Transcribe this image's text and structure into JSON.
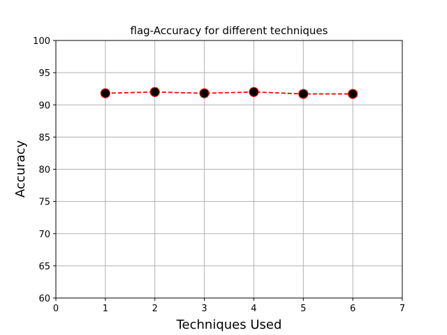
{
  "chart_data": {
    "type": "line",
    "title": "flag-Accuracy for different techniques",
    "xlabel": "Techniques Used",
    "ylabel": "Accuracy",
    "x": [
      1,
      2,
      3,
      4,
      5,
      6
    ],
    "series": [
      {
        "values": [
          91.8,
          92.0,
          91.8,
          92.0,
          91.7,
          91.7
        ]
      }
    ],
    "xlim": [
      0,
      7
    ],
    "ylim": [
      60,
      100
    ],
    "xticks": [
      0,
      1,
      2,
      3,
      4,
      5,
      6,
      7
    ],
    "yticks": [
      60,
      65,
      70,
      75,
      80,
      85,
      90,
      95,
      100
    ],
    "grid": true,
    "line_color": "#ff0000",
    "line_style": "dashed",
    "marker_fill": "#000000",
    "marker_edge": "#ff0000"
  }
}
